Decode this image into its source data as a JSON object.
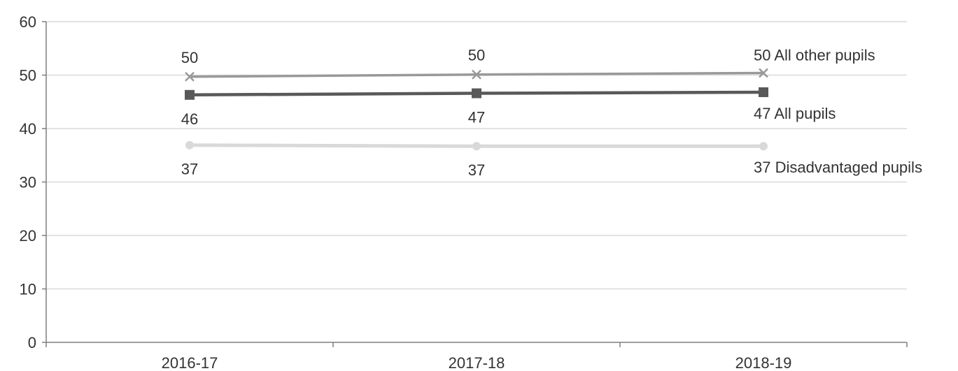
{
  "chart_data": {
    "type": "line",
    "categories": [
      "2016-17",
      "2017-18",
      "2018-19"
    ],
    "ylim": [
      0,
      60
    ],
    "yticks": [
      0,
      10,
      20,
      30,
      40,
      50,
      60
    ],
    "grid": true,
    "legend": "inline-right",
    "series": [
      {
        "name": "All other pupils",
        "values": [
          49.7,
          50.1,
          50.4
        ],
        "data_labels": [
          "50",
          "50",
          "50"
        ],
        "end_label": "50 All  other pupils",
        "color": "#999999",
        "marker": "x"
      },
      {
        "name": "All pupils",
        "values": [
          46.3,
          46.6,
          46.8
        ],
        "data_labels": [
          "46",
          "47",
          "47"
        ],
        "end_label": "47 All  pupils",
        "color": "#595959",
        "marker": "square"
      },
      {
        "name": "Disadvantaged pupils",
        "values": [
          36.9,
          36.7,
          36.7
        ],
        "data_labels": [
          "37",
          "37",
          "37"
        ],
        "end_label": "37 Disadvantaged pupils",
        "color": "#d9d9d9",
        "marker": "circle"
      }
    ]
  }
}
